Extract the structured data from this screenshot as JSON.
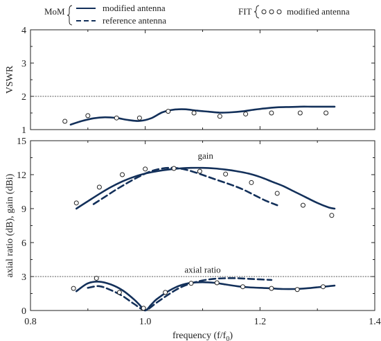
{
  "legend": {
    "mom_label": "MoM",
    "mom_solid": "modified antenna",
    "mom_dashed": "reference antenna",
    "fit_label": "FIT",
    "fit_markers": "modified antenna"
  },
  "colors": {
    "curve": "#13305a",
    "axis": "#222222"
  },
  "chart_data": [
    {
      "type": "line",
      "panel": "top",
      "ylabel": "VSWR",
      "xlabel": "",
      "xlim": [
        0.8,
        1.4
      ],
      "ylim": [
        1,
        4
      ],
      "yticks": [
        "1",
        "2",
        "3",
        "4"
      ],
      "reference_line": 2,
      "series": [
        {
          "name": "modified antenna",
          "method": "MoM",
          "style": "solid",
          "x": [
            0.87,
            0.89,
            0.91,
            0.93,
            0.95,
            0.97,
            0.99,
            1.01,
            1.03,
            1.05,
            1.07,
            1.09,
            1.11,
            1.13,
            1.15,
            1.17,
            1.19,
            1.21,
            1.23,
            1.25,
            1.27,
            1.29,
            1.31,
            1.33
          ],
          "y": [
            1.15,
            1.26,
            1.34,
            1.37,
            1.35,
            1.29,
            1.26,
            1.34,
            1.52,
            1.6,
            1.61,
            1.57,
            1.54,
            1.51,
            1.52,
            1.55,
            1.6,
            1.64,
            1.67,
            1.68,
            1.69,
            1.69,
            1.69,
            1.69
          ]
        },
        {
          "name": "modified antenna",
          "method": "FIT",
          "style": "markers",
          "x": [
            0.86,
            0.9,
            0.95,
            0.99,
            1.04,
            1.085,
            1.13,
            1.175,
            1.22,
            1.27,
            1.315
          ],
          "y": [
            1.25,
            1.42,
            1.35,
            1.35,
            1.55,
            1.5,
            1.4,
            1.47,
            1.5,
            1.5,
            1.5
          ]
        }
      ]
    },
    {
      "type": "line",
      "panel": "bottom",
      "ylabel": "axial ratio (dB), gain (dBi)",
      "xlabel": "frequency (f/f",
      "xlabel_sub": "0",
      "xlabel_end": ")",
      "xlim": [
        0.8,
        1.4
      ],
      "ylim": [
        0,
        15
      ],
      "xticks": [
        "0.8",
        "1.0",
        "1.2",
        "1.4"
      ],
      "yticks": [
        "0",
        "3",
        "6",
        "9",
        "12",
        "15"
      ],
      "reference_line": 3,
      "annotations": {
        "gain": "gain",
        "axial_ratio": "axial ratio"
      },
      "series": [
        {
          "name": "modified antenna",
          "quantity": "gain",
          "method": "MoM",
          "style": "solid",
          "x": [
            0.88,
            0.9,
            0.92,
            0.94,
            0.96,
            0.98,
            1.0,
            1.02,
            1.04,
            1.06,
            1.08,
            1.1,
            1.12,
            1.14,
            1.16,
            1.18,
            1.2,
            1.22,
            1.24,
            1.26,
            1.28,
            1.3,
            1.32,
            1.33
          ],
          "y": [
            9.0,
            9.65,
            10.3,
            10.9,
            11.4,
            11.8,
            12.1,
            12.3,
            12.45,
            12.55,
            12.6,
            12.6,
            12.55,
            12.45,
            12.3,
            12.1,
            11.8,
            11.4,
            11.0,
            10.5,
            10.0,
            9.5,
            9.1,
            9.0
          ]
        },
        {
          "name": "reference antenna",
          "quantity": "gain",
          "method": "MoM",
          "style": "dashed",
          "x": [
            0.91,
            0.93,
            0.95,
            0.97,
            0.99,
            1.01,
            1.03,
            1.05,
            1.07,
            1.09,
            1.11,
            1.13,
            1.15,
            1.17,
            1.19,
            1.21,
            1.23
          ],
          "y": [
            9.4,
            10.05,
            10.7,
            11.3,
            11.85,
            12.3,
            12.55,
            12.6,
            12.45,
            12.15,
            11.8,
            11.45,
            11.1,
            10.7,
            10.2,
            9.7,
            9.3
          ]
        },
        {
          "name": "modified antenna",
          "quantity": "gain",
          "method": "FIT",
          "style": "markers",
          "x": [
            0.88,
            0.92,
            0.96,
            1.0,
            1.05,
            1.095,
            1.14,
            1.185,
            1.23,
            1.275,
            1.325
          ],
          "y": [
            9.5,
            10.9,
            12.0,
            12.5,
            12.55,
            12.3,
            12.05,
            11.3,
            10.35,
            9.3,
            8.4
          ]
        },
        {
          "name": "modified antenna",
          "quantity": "axial ratio",
          "method": "MoM",
          "style": "solid",
          "x": [
            0.88,
            0.9,
            0.92,
            0.94,
            0.96,
            0.98,
            0.99,
            1.0,
            1.01,
            1.02,
            1.04,
            1.06,
            1.08,
            1.1,
            1.12,
            1.14,
            1.16,
            1.18,
            1.2,
            1.22,
            1.24,
            1.26,
            1.28,
            1.3,
            1.32,
            1.33
          ],
          "y": [
            1.7,
            2.4,
            2.55,
            2.3,
            1.8,
            1.0,
            0.5,
            0.0,
            0.5,
            1.0,
            1.7,
            2.2,
            2.45,
            2.5,
            2.45,
            2.3,
            2.15,
            2.05,
            2.0,
            1.95,
            1.9,
            1.9,
            1.95,
            2.05,
            2.15,
            2.2
          ]
        },
        {
          "name": "reference antenna",
          "quantity": "axial ratio",
          "method": "MoM",
          "style": "dashed",
          "x": [
            0.9,
            0.92,
            0.94,
            0.96,
            0.98,
            1.0,
            1.02,
            1.04,
            1.06,
            1.08,
            1.1,
            1.12,
            1.14,
            1.16,
            1.18,
            1.2,
            1.22
          ],
          "y": [
            2.0,
            2.15,
            1.8,
            1.3,
            0.6,
            0.05,
            0.7,
            1.4,
            2.0,
            2.4,
            2.65,
            2.8,
            2.85,
            2.85,
            2.8,
            2.75,
            2.7
          ]
        },
        {
          "name": "modified antenna",
          "quantity": "axial ratio",
          "method": "FIT",
          "style": "markers",
          "x": [
            0.875,
            0.915,
            0.955,
            0.997,
            1.035,
            1.08,
            1.125,
            1.17,
            1.22,
            1.265,
            1.31
          ],
          "y": [
            1.95,
            2.85,
            1.6,
            0.2,
            1.6,
            2.4,
            2.45,
            2.1,
            1.95,
            1.85,
            2.1
          ]
        }
      ]
    }
  ]
}
